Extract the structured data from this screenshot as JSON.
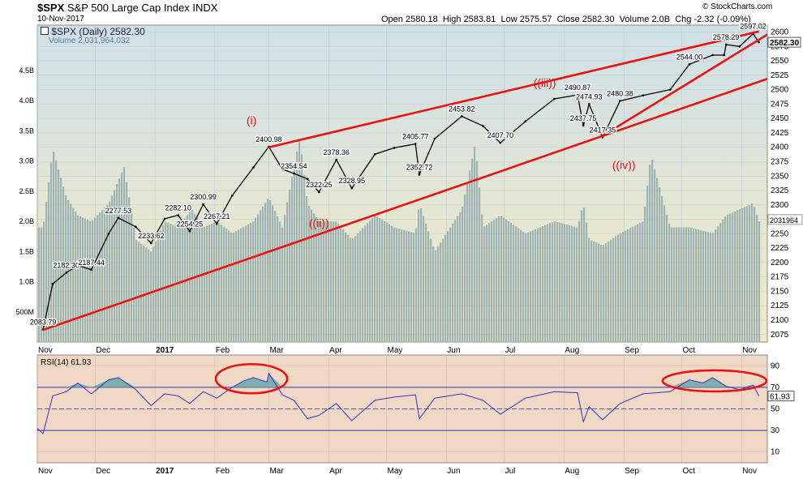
{
  "header": {
    "symbol": "$SPX",
    "name": "S&P 500 Large Cap Index",
    "exchange": "INDX",
    "date": "10-Nov-2017",
    "open_label": "Open",
    "open": "2580.18",
    "high_label": "High",
    "high": "2583.81",
    "low_label": "Low",
    "low": "2575.57",
    "close_label": "Close",
    "close": "2582.30",
    "volume_label": "Volume",
    "volume": "2.0B",
    "chg_label": "Chg",
    "chg": "-2.32 (-0.09%)",
    "watermark": "© StockCharts.com",
    "legend_price": "$SPX (Daily) 2582.30",
    "legend_volume": "Volume 2,031,964,032"
  },
  "colors": {
    "price_bg_top": "#cfe0e8",
    "price_bg_bottom": "#f2ebc4",
    "rsi_bg": "#f0d9c4",
    "candle": "#000000",
    "volume": "#9fb3b3",
    "trendline": "#ee1111",
    "rsi_line": "#3333cc",
    "rsi_fill": "#6aa6aa"
  },
  "chart_data": {
    "type": "line",
    "title": "S&P 500 Large Cap Index",
    "price_axis": {
      "ylim": [
        2062,
        2612
      ],
      "ticks": [
        2075,
        2100,
        2125,
        2150,
        2175,
        2200,
        2225,
        2250,
        2275,
        2300,
        2325,
        2350,
        2375,
        2400,
        2425,
        2450,
        2475,
        2500,
        2525,
        2550,
        2575,
        2600
      ],
      "last_value_label": "2582.30",
      "volume_value_label": "2031964"
    },
    "volume_axis": {
      "ticks": [
        "500M",
        "1.0B",
        "1.5B",
        "2.0B",
        "2.5B",
        "3.0B",
        "3.5B",
        "4.0B",
        "4.5B"
      ],
      "max_billions": 5.25
    },
    "x_axis": {
      "labels": [
        "Nov",
        "Dec",
        "2017",
        "Feb",
        "Mar",
        "Apr",
        "May",
        "Jun",
        "Jul",
        "Aug",
        "Sep",
        "Oct",
        "Nov"
      ],
      "bold": [
        "2017"
      ]
    },
    "price_series": [
      {
        "date": "2016-11-04",
        "value": 2083.79
      },
      {
        "date": "2016-11-09",
        "value": 2163
      },
      {
        "date": "2016-11-16",
        "value": 2182.3
      },
      {
        "date": "2016-11-22",
        "value": 2195
      },
      {
        "date": "2016-11-29",
        "value": 2187.44
      },
      {
        "date": "2016-12-08",
        "value": 2250
      },
      {
        "date": "2016-12-13",
        "value": 2277.53
      },
      {
        "date": "2016-12-22",
        "value": 2262
      },
      {
        "date": "2016-12-30",
        "value": 2233.62
      },
      {
        "date": "2017-01-06",
        "value": 2276
      },
      {
        "date": "2017-01-13",
        "value": 2282.1
      },
      {
        "date": "2017-01-19",
        "value": 2254.25
      },
      {
        "date": "2017-01-26",
        "value": 2300.99
      },
      {
        "date": "2017-02-02",
        "value": 2267.21
      },
      {
        "date": "2017-02-10",
        "value": 2316
      },
      {
        "date": "2017-02-21",
        "value": 2365
      },
      {
        "date": "2017-03-01",
        "value": 2400.98
      },
      {
        "date": "2017-03-08",
        "value": 2362
      },
      {
        "date": "2017-03-14",
        "value": 2354.54
      },
      {
        "date": "2017-03-21",
        "value": 2345
      },
      {
        "date": "2017-03-27",
        "value": 2322.25
      },
      {
        "date": "2017-04-05",
        "value": 2378.36
      },
      {
        "date": "2017-04-13",
        "value": 2328.95
      },
      {
        "date": "2017-04-25",
        "value": 2388
      },
      {
        "date": "2017-05-05",
        "value": 2399
      },
      {
        "date": "2017-05-16",
        "value": 2405.77
      },
      {
        "date": "2017-05-18",
        "value": 2352.72
      },
      {
        "date": "2017-05-26",
        "value": 2415
      },
      {
        "date": "2017-06-09",
        "value": 2453.82
      },
      {
        "date": "2017-06-20",
        "value": 2437
      },
      {
        "date": "2017-06-29",
        "value": 2407.7
      },
      {
        "date": "2017-07-12",
        "value": 2445
      },
      {
        "date": "2017-07-27",
        "value": 2484
      },
      {
        "date": "2017-08-08",
        "value": 2490.87
      },
      {
        "date": "2017-08-11",
        "value": 2437.75
      },
      {
        "date": "2017-08-14",
        "value": 2474.93
      },
      {
        "date": "2017-08-21",
        "value": 2417.35
      },
      {
        "date": "2017-08-30",
        "value": 2480.38
      },
      {
        "date": "2017-09-11",
        "value": 2490
      },
      {
        "date": "2017-09-25",
        "value": 2500
      },
      {
        "date": "2017-10-05",
        "value": 2544.0
      },
      {
        "date": "2017-10-17",
        "value": 2560
      },
      {
        "date": "2017-10-23",
        "value": 2560
      },
      {
        "date": "2017-10-24",
        "value": 2578.29
      },
      {
        "date": "2017-10-31",
        "value": 2575
      },
      {
        "date": "2017-11-07",
        "value": 2597.02
      },
      {
        "date": "2017-11-10",
        "value": 2582.3
      }
    ],
    "price_labels": [
      {
        "date": "2016-11-04",
        "value": 2083.79,
        "text": "2083.79"
      },
      {
        "date": "2016-11-16",
        "value": 2182.3,
        "text": "2182.30"
      },
      {
        "date": "2016-11-29",
        "value": 2187.44,
        "text": "2187.44"
      },
      {
        "date": "2016-12-13",
        "value": 2277.53,
        "text": "2277.53"
      },
      {
        "date": "2016-12-30",
        "value": 2233.62,
        "text": "2233.62"
      },
      {
        "date": "2017-01-13",
        "value": 2282.1,
        "text": "2282.10"
      },
      {
        "date": "2017-01-19",
        "value": 2254.25,
        "text": "2254.25"
      },
      {
        "date": "2017-01-26",
        "value": 2300.99,
        "text": "2300.99"
      },
      {
        "date": "2017-02-02",
        "value": 2267.21,
        "text": "2267.21"
      },
      {
        "date": "2017-03-01",
        "value": 2400.98,
        "text": "2400.98"
      },
      {
        "date": "2017-03-14",
        "value": 2354.54,
        "text": "2354.54"
      },
      {
        "date": "2017-03-27",
        "value": 2322.25,
        "text": "2322.25"
      },
      {
        "date": "2017-04-05",
        "value": 2378.36,
        "text": "2378.36"
      },
      {
        "date": "2017-04-13",
        "value": 2328.95,
        "text": "2328.95"
      },
      {
        "date": "2017-05-16",
        "value": 2405.77,
        "text": "2405.77"
      },
      {
        "date": "2017-05-18",
        "value": 2352.72,
        "text": "2352.72"
      },
      {
        "date": "2017-06-09",
        "value": 2453.82,
        "text": "2453.82"
      },
      {
        "date": "2017-06-29",
        "value": 2407.7,
        "text": "2407.70"
      },
      {
        "date": "2017-08-08",
        "value": 2490.87,
        "text": "2490.87"
      },
      {
        "date": "2017-08-11",
        "value": 2437.75,
        "text": "2437.75"
      },
      {
        "date": "2017-08-14",
        "value": 2474.93,
        "text": "2474.93"
      },
      {
        "date": "2017-08-21",
        "value": 2417.35,
        "text": "2417.35"
      },
      {
        "date": "2017-08-30",
        "value": 2480.38,
        "text": "2480.38"
      },
      {
        "date": "2017-10-05",
        "value": 2544.0,
        "text": "2544.00"
      },
      {
        "date": "2017-10-24",
        "value": 2578.29,
        "text": "2578.29"
      },
      {
        "date": "2017-11-07",
        "value": 2597.02,
        "text": "2597.02"
      }
    ],
    "wave_labels": [
      {
        "text": "(i)",
        "date": "2017-02-20",
        "value": 2440
      },
      {
        "text": "((ii))",
        "date": "2017-03-27",
        "value": 2262
      },
      {
        "text": "((iii))",
        "date": "2017-07-22",
        "value": 2505
      },
      {
        "text": "((iv))",
        "date": "2017-09-01",
        "value": 2362
      }
    ],
    "trendlines": [
      {
        "from": {
          "date": "2016-11-04",
          "value": 2083
        },
        "to": {
          "date": "2017-11-24",
          "value": 2530
        }
      },
      {
        "from": {
          "date": "2017-03-01",
          "value": 2400
        },
        "to": {
          "date": "2017-11-10",
          "value": 2601
        }
      },
      {
        "from": {
          "date": "2017-08-21",
          "value": 2420
        },
        "to": {
          "date": "2017-11-15",
          "value": 2597
        }
      }
    ],
    "rsi": {
      "label": "RSI(14)",
      "value": 61.93,
      "value_label": "61.93",
      "ylim": [
        0,
        100
      ],
      "ticks": [
        10,
        30,
        50,
        70,
        90
      ],
      "overbought": 70,
      "oversold": 30,
      "series": [
        {
          "date": "2016-11-01",
          "value": 32
        },
        {
          "date": "2016-11-04",
          "value": 27
        },
        {
          "date": "2016-11-09",
          "value": 62
        },
        {
          "date": "2016-11-16",
          "value": 66
        },
        {
          "date": "2016-11-22",
          "value": 74
        },
        {
          "date": "2016-11-29",
          "value": 64
        },
        {
          "date": "2016-12-08",
          "value": 77
        },
        {
          "date": "2016-12-13",
          "value": 79
        },
        {
          "date": "2016-12-22",
          "value": 68
        },
        {
          "date": "2016-12-30",
          "value": 53
        },
        {
          "date": "2017-01-06",
          "value": 64
        },
        {
          "date": "2017-01-13",
          "value": 62
        },
        {
          "date": "2017-01-19",
          "value": 55
        },
        {
          "date": "2017-01-26",
          "value": 66
        },
        {
          "date": "2017-02-02",
          "value": 60
        },
        {
          "date": "2017-02-10",
          "value": 70
        },
        {
          "date": "2017-02-16",
          "value": 76
        },
        {
          "date": "2017-02-21",
          "value": 79
        },
        {
          "date": "2017-02-28",
          "value": 75
        },
        {
          "date": "2017-03-01",
          "value": 83
        },
        {
          "date": "2017-03-08",
          "value": 63
        },
        {
          "date": "2017-03-14",
          "value": 58
        },
        {
          "date": "2017-03-21",
          "value": 41
        },
        {
          "date": "2017-03-27",
          "value": 44
        },
        {
          "date": "2017-04-05",
          "value": 55
        },
        {
          "date": "2017-04-13",
          "value": 39
        },
        {
          "date": "2017-04-25",
          "value": 58
        },
        {
          "date": "2017-05-05",
          "value": 61
        },
        {
          "date": "2017-05-16",
          "value": 63
        },
        {
          "date": "2017-05-18",
          "value": 41
        },
        {
          "date": "2017-05-26",
          "value": 60
        },
        {
          "date": "2017-06-09",
          "value": 64
        },
        {
          "date": "2017-06-20",
          "value": 58
        },
        {
          "date": "2017-06-29",
          "value": 45
        },
        {
          "date": "2017-07-12",
          "value": 60
        },
        {
          "date": "2017-07-27",
          "value": 66
        },
        {
          "date": "2017-08-08",
          "value": 65
        },
        {
          "date": "2017-08-11",
          "value": 38
        },
        {
          "date": "2017-08-14",
          "value": 52
        },
        {
          "date": "2017-08-21",
          "value": 40
        },
        {
          "date": "2017-08-30",
          "value": 55
        },
        {
          "date": "2017-09-11",
          "value": 64
        },
        {
          "date": "2017-09-25",
          "value": 66
        },
        {
          "date": "2017-10-05",
          "value": 77
        },
        {
          "date": "2017-10-12",
          "value": 74
        },
        {
          "date": "2017-10-17",
          "value": 79
        },
        {
          "date": "2017-10-24",
          "value": 71
        },
        {
          "date": "2017-10-31",
          "value": 68
        },
        {
          "date": "2017-11-07",
          "value": 72
        },
        {
          "date": "2017-11-10",
          "value": 61.93
        }
      ]
    },
    "volume_series": [
      {
        "date": "2016-11-04",
        "value": 1.9
      },
      {
        "date": "2016-11-09",
        "value": 3.2
      },
      {
        "date": "2016-11-16",
        "value": 2.4
      },
      {
        "date": "2016-11-22",
        "value": 2.1
      },
      {
        "date": "2016-11-29",
        "value": 2.0
      },
      {
        "date": "2016-12-08",
        "value": 2.3
      },
      {
        "date": "2016-12-16",
        "value": 2.9
      },
      {
        "date": "2016-12-22",
        "value": 1.7
      },
      {
        "date": "2016-12-30",
        "value": 1.5
      },
      {
        "date": "2017-01-06",
        "value": 2.0
      },
      {
        "date": "2017-01-13",
        "value": 1.9
      },
      {
        "date": "2017-01-20",
        "value": 2.2
      },
      {
        "date": "2017-01-26",
        "value": 1.9
      },
      {
        "date": "2017-02-02",
        "value": 2.0
      },
      {
        "date": "2017-02-10",
        "value": 1.8
      },
      {
        "date": "2017-02-21",
        "value": 2.0
      },
      {
        "date": "2017-03-01",
        "value": 2.4
      },
      {
        "date": "2017-03-08",
        "value": 1.9
      },
      {
        "date": "2017-03-17",
        "value": 3.4
      },
      {
        "date": "2017-03-21",
        "value": 2.3
      },
      {
        "date": "2017-03-27",
        "value": 2.0
      },
      {
        "date": "2017-04-05",
        "value": 2.0
      },
      {
        "date": "2017-04-13",
        "value": 1.7
      },
      {
        "date": "2017-04-25",
        "value": 2.1
      },
      {
        "date": "2017-05-05",
        "value": 1.9
      },
      {
        "date": "2017-05-16",
        "value": 1.8
      },
      {
        "date": "2017-05-18",
        "value": 2.3
      },
      {
        "date": "2017-05-26",
        "value": 1.5
      },
      {
        "date": "2017-06-09",
        "value": 2.2
      },
      {
        "date": "2017-06-16",
        "value": 3.3
      },
      {
        "date": "2017-06-20",
        "value": 1.9
      },
      {
        "date": "2017-06-29",
        "value": 2.1
      },
      {
        "date": "2017-07-12",
        "value": 1.8
      },
      {
        "date": "2017-07-27",
        "value": 2.0
      },
      {
        "date": "2017-08-08",
        "value": 1.9
      },
      {
        "date": "2017-08-11",
        "value": 2.3
      },
      {
        "date": "2017-08-14",
        "value": 1.7
      },
      {
        "date": "2017-08-21",
        "value": 1.6
      },
      {
        "date": "2017-08-30",
        "value": 1.8
      },
      {
        "date": "2017-09-11",
        "value": 2.0
      },
      {
        "date": "2017-09-15",
        "value": 3.1
      },
      {
        "date": "2017-09-25",
        "value": 1.9
      },
      {
        "date": "2017-10-05",
        "value": 1.9
      },
      {
        "date": "2017-10-17",
        "value": 1.8
      },
      {
        "date": "2017-10-24",
        "value": 2.1
      },
      {
        "date": "2017-10-31",
        "value": 2.2
      },
      {
        "date": "2017-11-07",
        "value": 2.3
      },
      {
        "date": "2017-11-10",
        "value": 2.0
      }
    ]
  }
}
